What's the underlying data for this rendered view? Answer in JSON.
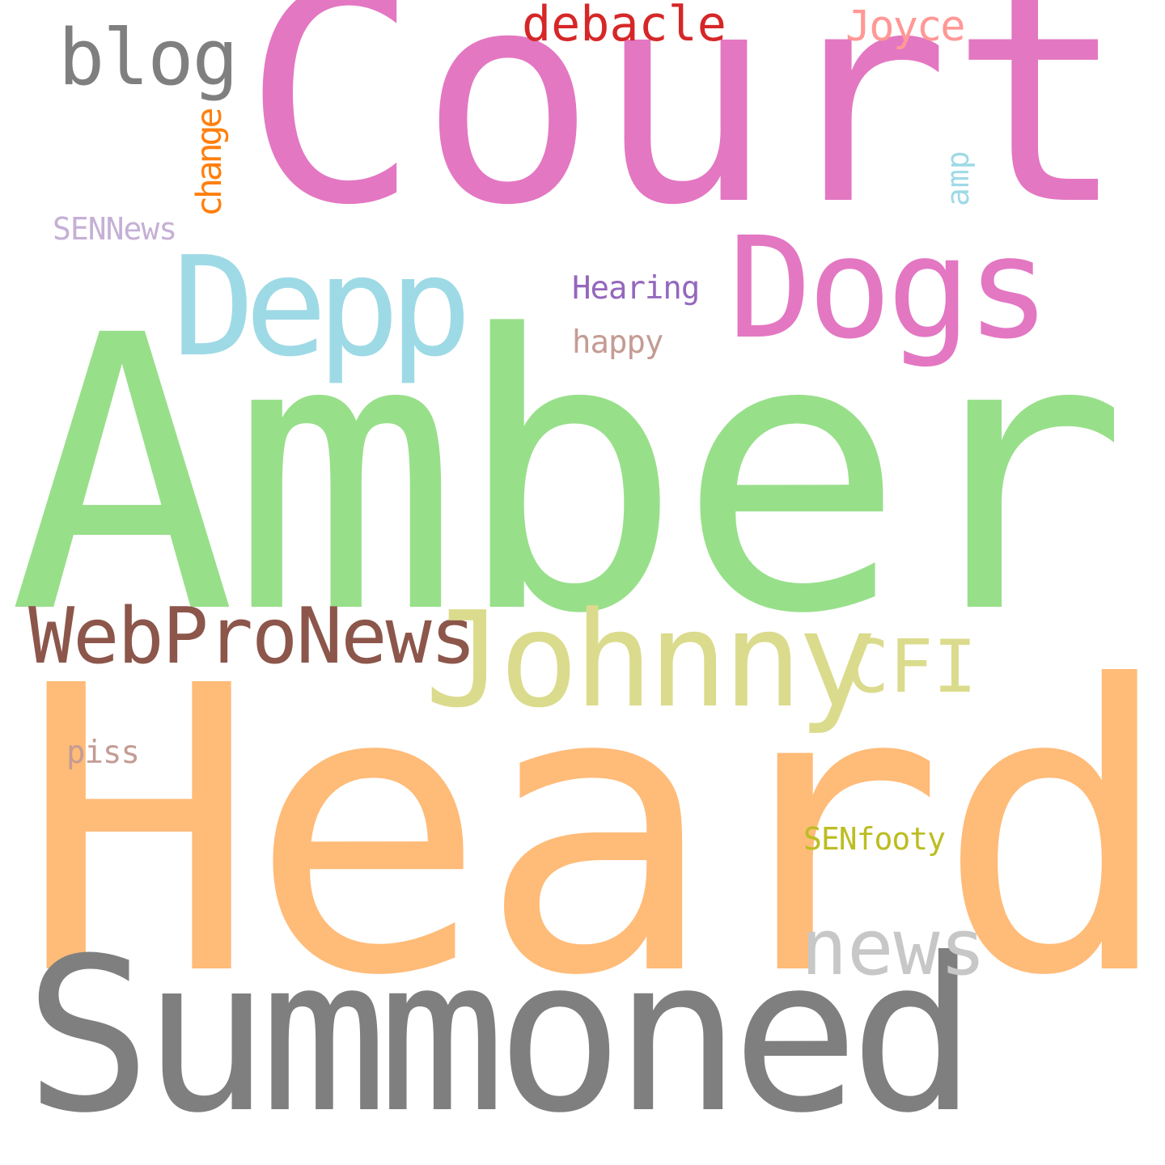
{
  "words": {
    "court": {
      "text": "Court",
      "color": "#e377c2"
    },
    "amber": {
      "text": "Amber",
      "color": "#98df8a"
    },
    "heard": {
      "text": "Heard",
      "color": "#ffbb78"
    },
    "summoned": {
      "text": "Summoned",
      "color": "#7f7f7f"
    },
    "johnny": {
      "text": "Johnny",
      "color": "#dbdb8d"
    },
    "webpronews": {
      "text": "WebProNews",
      "color": "#8c564b"
    },
    "dogs": {
      "text": "Dogs",
      "color": "#e377c2"
    },
    "depp": {
      "text": "Depp",
      "color": "#9edae5"
    },
    "cfi": {
      "text": "CFI",
      "color": "#dbdb8d"
    },
    "news": {
      "text": "news",
      "color": "#c7c7c7"
    },
    "blog": {
      "text": "blog",
      "color": "#7f7f7f"
    },
    "debacle": {
      "text": "debacle",
      "color": "#d62728"
    },
    "joyce": {
      "text": "Joyce",
      "color": "#ff9896"
    },
    "change": {
      "text": "change",
      "color": "#ff7f0e"
    },
    "amp": {
      "text": "amp",
      "color": "#9edae5"
    },
    "sennews": {
      "text": "SENNews",
      "color": "#c5b0d5"
    },
    "hearing": {
      "text": "Hearing",
      "color": "#9467bd"
    },
    "happy": {
      "text": "happy",
      "color": "#c49c94"
    },
    "piss": {
      "text": "piss",
      "color": "#c49c94"
    },
    "senfooty": {
      "text": "SENfooty",
      "color": "#bcbd22"
    }
  }
}
